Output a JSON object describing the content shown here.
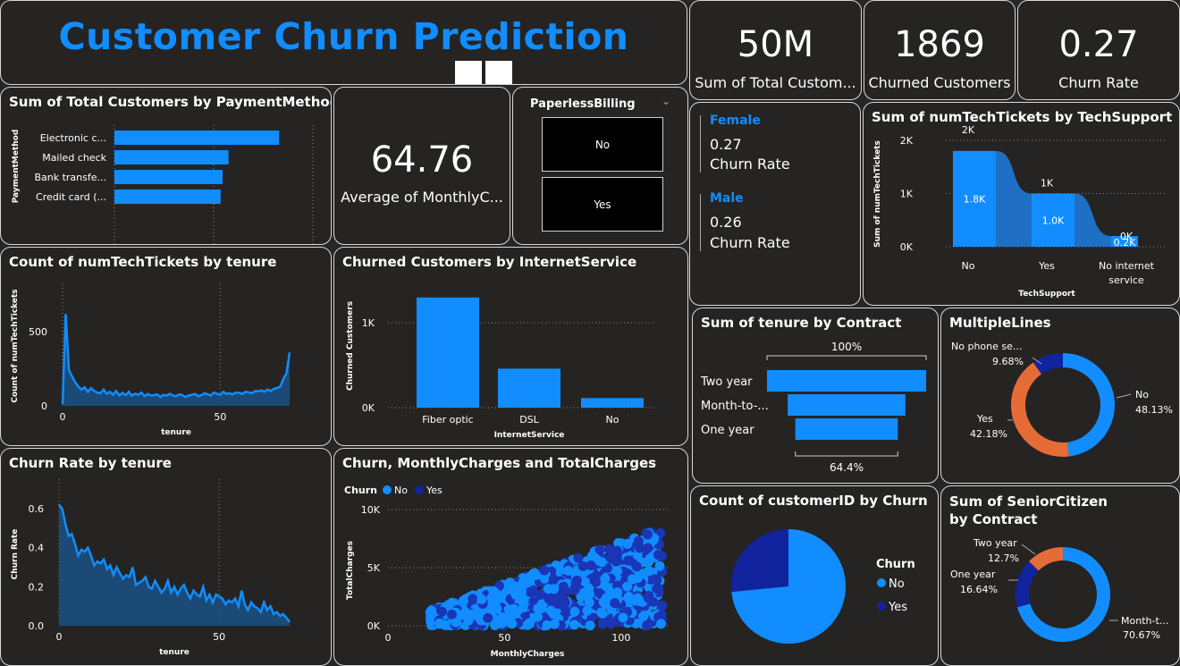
{
  "header": {
    "title": "Customer Churn Prediction"
  },
  "kpis": {
    "total_customers": {
      "value": "50M",
      "label": "Sum of Total Custom..."
    },
    "churned_customers": {
      "value": "1869",
      "label": "Churned Customers"
    },
    "churn_rate": {
      "value": "0.27",
      "label": "Churn Rate"
    },
    "avg_monthly": {
      "value": "64.76",
      "label": "Average of MonthlyC..."
    }
  },
  "slicer": {
    "title": "PaperlessBilling",
    "options": [
      "No",
      "Yes"
    ]
  },
  "gender": {
    "female": {
      "name": "Female",
      "value": "0.27",
      "label": "Churn Rate"
    },
    "male": {
      "name": "Male",
      "value": "0.26",
      "label": "Churn Rate"
    }
  },
  "colors": {
    "accent": "#118DFF",
    "dark_blue": "#12239E",
    "orange": "#E66C37",
    "panel": "#252423"
  },
  "chart_data": [
    {
      "id": "payment",
      "type": "bar",
      "orientation": "horizontal",
      "title": "Sum of Total Customers by PaymentMethod",
      "ylabel": "PaymentMethod",
      "xlabel": "",
      "categories": [
        "Electronic c...",
        "Mailed check",
        "Bank transfe...",
        "Credit card (..."
      ],
      "values": [
        16.6,
        11.5,
        10.9,
        10.7
      ],
      "xlim": [
        0,
        20
      ],
      "xticks": [
        "0M",
        "10M",
        "20M"
      ]
    },
    {
      "id": "techsupport",
      "type": "area",
      "title": "Sum of numTechTickets by TechSupport",
      "xlabel": "TechSupport",
      "ylabel": "Sum of numTechTickets",
      "categories": [
        "No",
        "Yes",
        "No internet service"
      ],
      "values": [
        1.8,
        1.0,
        0.2
      ],
      "data_labels": [
        "1.8K",
        "1.0K",
        "0.2K"
      ],
      "top_labels": [
        "2K",
        "1K",
        "0K"
      ],
      "ylim": [
        0,
        2
      ],
      "yticks": [
        "0K",
        "1K",
        "2K"
      ]
    },
    {
      "id": "tickets_tenure",
      "type": "area",
      "title": "Count of numTechTickets by tenure",
      "xlabel": "tenure",
      "ylabel": "Count of numTechTickets",
      "x": [
        0,
        1,
        2,
        3,
        4,
        5,
        6,
        7,
        8,
        9,
        10,
        11,
        12,
        13,
        14,
        15,
        16,
        17,
        18,
        19,
        20,
        21,
        22,
        23,
        24,
        25,
        26,
        27,
        28,
        29,
        30,
        31,
        32,
        33,
        34,
        35,
        36,
        37,
        38,
        39,
        40,
        41,
        42,
        43,
        44,
        45,
        46,
        47,
        48,
        49,
        50,
        51,
        52,
        53,
        54,
        55,
        56,
        57,
        58,
        59,
        60,
        61,
        62,
        63,
        64,
        65,
        66,
        67,
        68,
        69,
        70,
        71,
        72
      ],
      "values": [
        10,
        620,
        240,
        200,
        160,
        130,
        110,
        125,
        95,
        120,
        100,
        90,
        85,
        110,
        80,
        95,
        75,
        100,
        70,
        88,
        72,
        95,
        68,
        82,
        75,
        90,
        65,
        80,
        70,
        72,
        78,
        60,
        75,
        68,
        82,
        70,
        65,
        78,
        72,
        60,
        70,
        75,
        80,
        65,
        72,
        85,
        78,
        70,
        90,
        82,
        75,
        95,
        80,
        85,
        78,
        90,
        88,
        80,
        95,
        92,
        85,
        100,
        98,
        105,
        95,
        110,
        100,
        115,
        120,
        130,
        180,
        220,
        360
      ],
      "xticks": [
        0,
        50
      ],
      "yticks": [
        0,
        500
      ],
      "ylim": [
        0,
        700
      ]
    },
    {
      "id": "internet",
      "type": "bar",
      "title": "Churned Customers by InternetService",
      "xlabel": "InternetService",
      "ylabel": "Churned Customers",
      "categories": [
        "Fiber optic",
        "DSL",
        "No"
      ],
      "values": [
        1297,
        459,
        113
      ],
      "ylim": [
        0,
        1400
      ],
      "yticks": [
        "0K",
        "1K"
      ]
    },
    {
      "id": "contract_funnel",
      "type": "bar",
      "orientation": "funnel",
      "title": "Sum of tenure by Contract",
      "categories": [
        "Two year",
        "Month-to-...",
        "One year"
      ],
      "values": [
        100,
        74,
        64.4
      ],
      "top_label": "100%",
      "bottom_label": "64.4%"
    },
    {
      "id": "multiplelines",
      "type": "pie",
      "donut": true,
      "title": "MultipleLines",
      "categories": [
        "No",
        "Yes",
        "No phone se..."
      ],
      "values": [
        48.13,
        42.18,
        9.68
      ],
      "labels": [
        "48.13%",
        "42.18%",
        "9.68%"
      ],
      "colors": [
        "#118DFF",
        "#E66C37",
        "#12239E"
      ]
    },
    {
      "id": "churn_rate_tenure",
      "type": "area",
      "title": "Churn Rate by tenure",
      "xlabel": "tenure",
      "ylabel": "Churn Rate",
      "x": [
        0,
        1,
        2,
        3,
        4,
        5,
        6,
        7,
        8,
        9,
        10,
        11,
        12,
        13,
        14,
        15,
        16,
        17,
        18,
        19,
        20,
        21,
        22,
        23,
        24,
        25,
        26,
        27,
        28,
        29,
        30,
        31,
        32,
        33,
        34,
        35,
        36,
        37,
        38,
        39,
        40,
        41,
        42,
        43,
        44,
        45,
        46,
        47,
        48,
        49,
        50,
        51,
        52,
        53,
        54,
        55,
        56,
        57,
        58,
        59,
        60,
        61,
        62,
        63,
        64,
        65,
        66,
        67,
        68,
        69,
        70,
        71,
        72
      ],
      "values": [
        0.62,
        0.6,
        0.52,
        0.46,
        0.47,
        0.42,
        0.36,
        0.39,
        0.38,
        0.4,
        0.36,
        0.31,
        0.33,
        0.32,
        0.34,
        0.29,
        0.31,
        0.26,
        0.3,
        0.27,
        0.24,
        0.26,
        0.25,
        0.3,
        0.21,
        0.22,
        0.23,
        0.25,
        0.2,
        0.19,
        0.23,
        0.2,
        0.17,
        0.19,
        0.23,
        0.17,
        0.2,
        0.16,
        0.19,
        0.21,
        0.17,
        0.14,
        0.18,
        0.16,
        0.15,
        0.2,
        0.13,
        0.16,
        0.12,
        0.16,
        0.15,
        0.14,
        0.11,
        0.13,
        0.12,
        0.14,
        0.1,
        0.18,
        0.11,
        0.08,
        0.12,
        0.1,
        0.09,
        0.07,
        0.12,
        0.08,
        0.1,
        0.06,
        0.07,
        0.05,
        0.06,
        0.04,
        0.02
      ],
      "xticks": [
        0,
        50
      ],
      "yticks": [
        0.0,
        0.2,
        0.4,
        0.6
      ],
      "ylim": [
        0,
        0.66
      ]
    },
    {
      "id": "scatter",
      "type": "scatter",
      "title": "Churn, MonthlyCharges and TotalCharges",
      "xlabel": "MonthlyCharges",
      "ylabel": "TotalCharges",
      "legend_title": "Churn",
      "series": [
        {
          "name": "No",
          "color": "#118DFF"
        },
        {
          "name": "Yes",
          "color": "#12239E"
        }
      ],
      "xlim": [
        0,
        120
      ],
      "ylim": [
        0,
        10000
      ],
      "xticks": [
        0,
        50,
        100
      ],
      "yticks": [
        "0K",
        "5K",
        "10K"
      ]
    },
    {
      "id": "churn_pie",
      "type": "pie",
      "title": "Count of customerID by Churn",
      "legend_title": "Churn",
      "categories": [
        "No",
        "Yes"
      ],
      "values": [
        5174,
        1869
      ],
      "colors": [
        "#118DFF",
        "#12239E"
      ]
    },
    {
      "id": "senior",
      "type": "pie",
      "donut": true,
      "title": "Sum of SeniorCitizen by Contract",
      "categories": [
        "Month-t...",
        "One year",
        "Two year"
      ],
      "values": [
        70.67,
        16.64,
        12.7
      ],
      "labels": [
        "70.67%",
        "16.64%",
        "12.7%"
      ],
      "colors": [
        "#118DFF",
        "#12239E",
        "#E66C37"
      ]
    }
  ]
}
